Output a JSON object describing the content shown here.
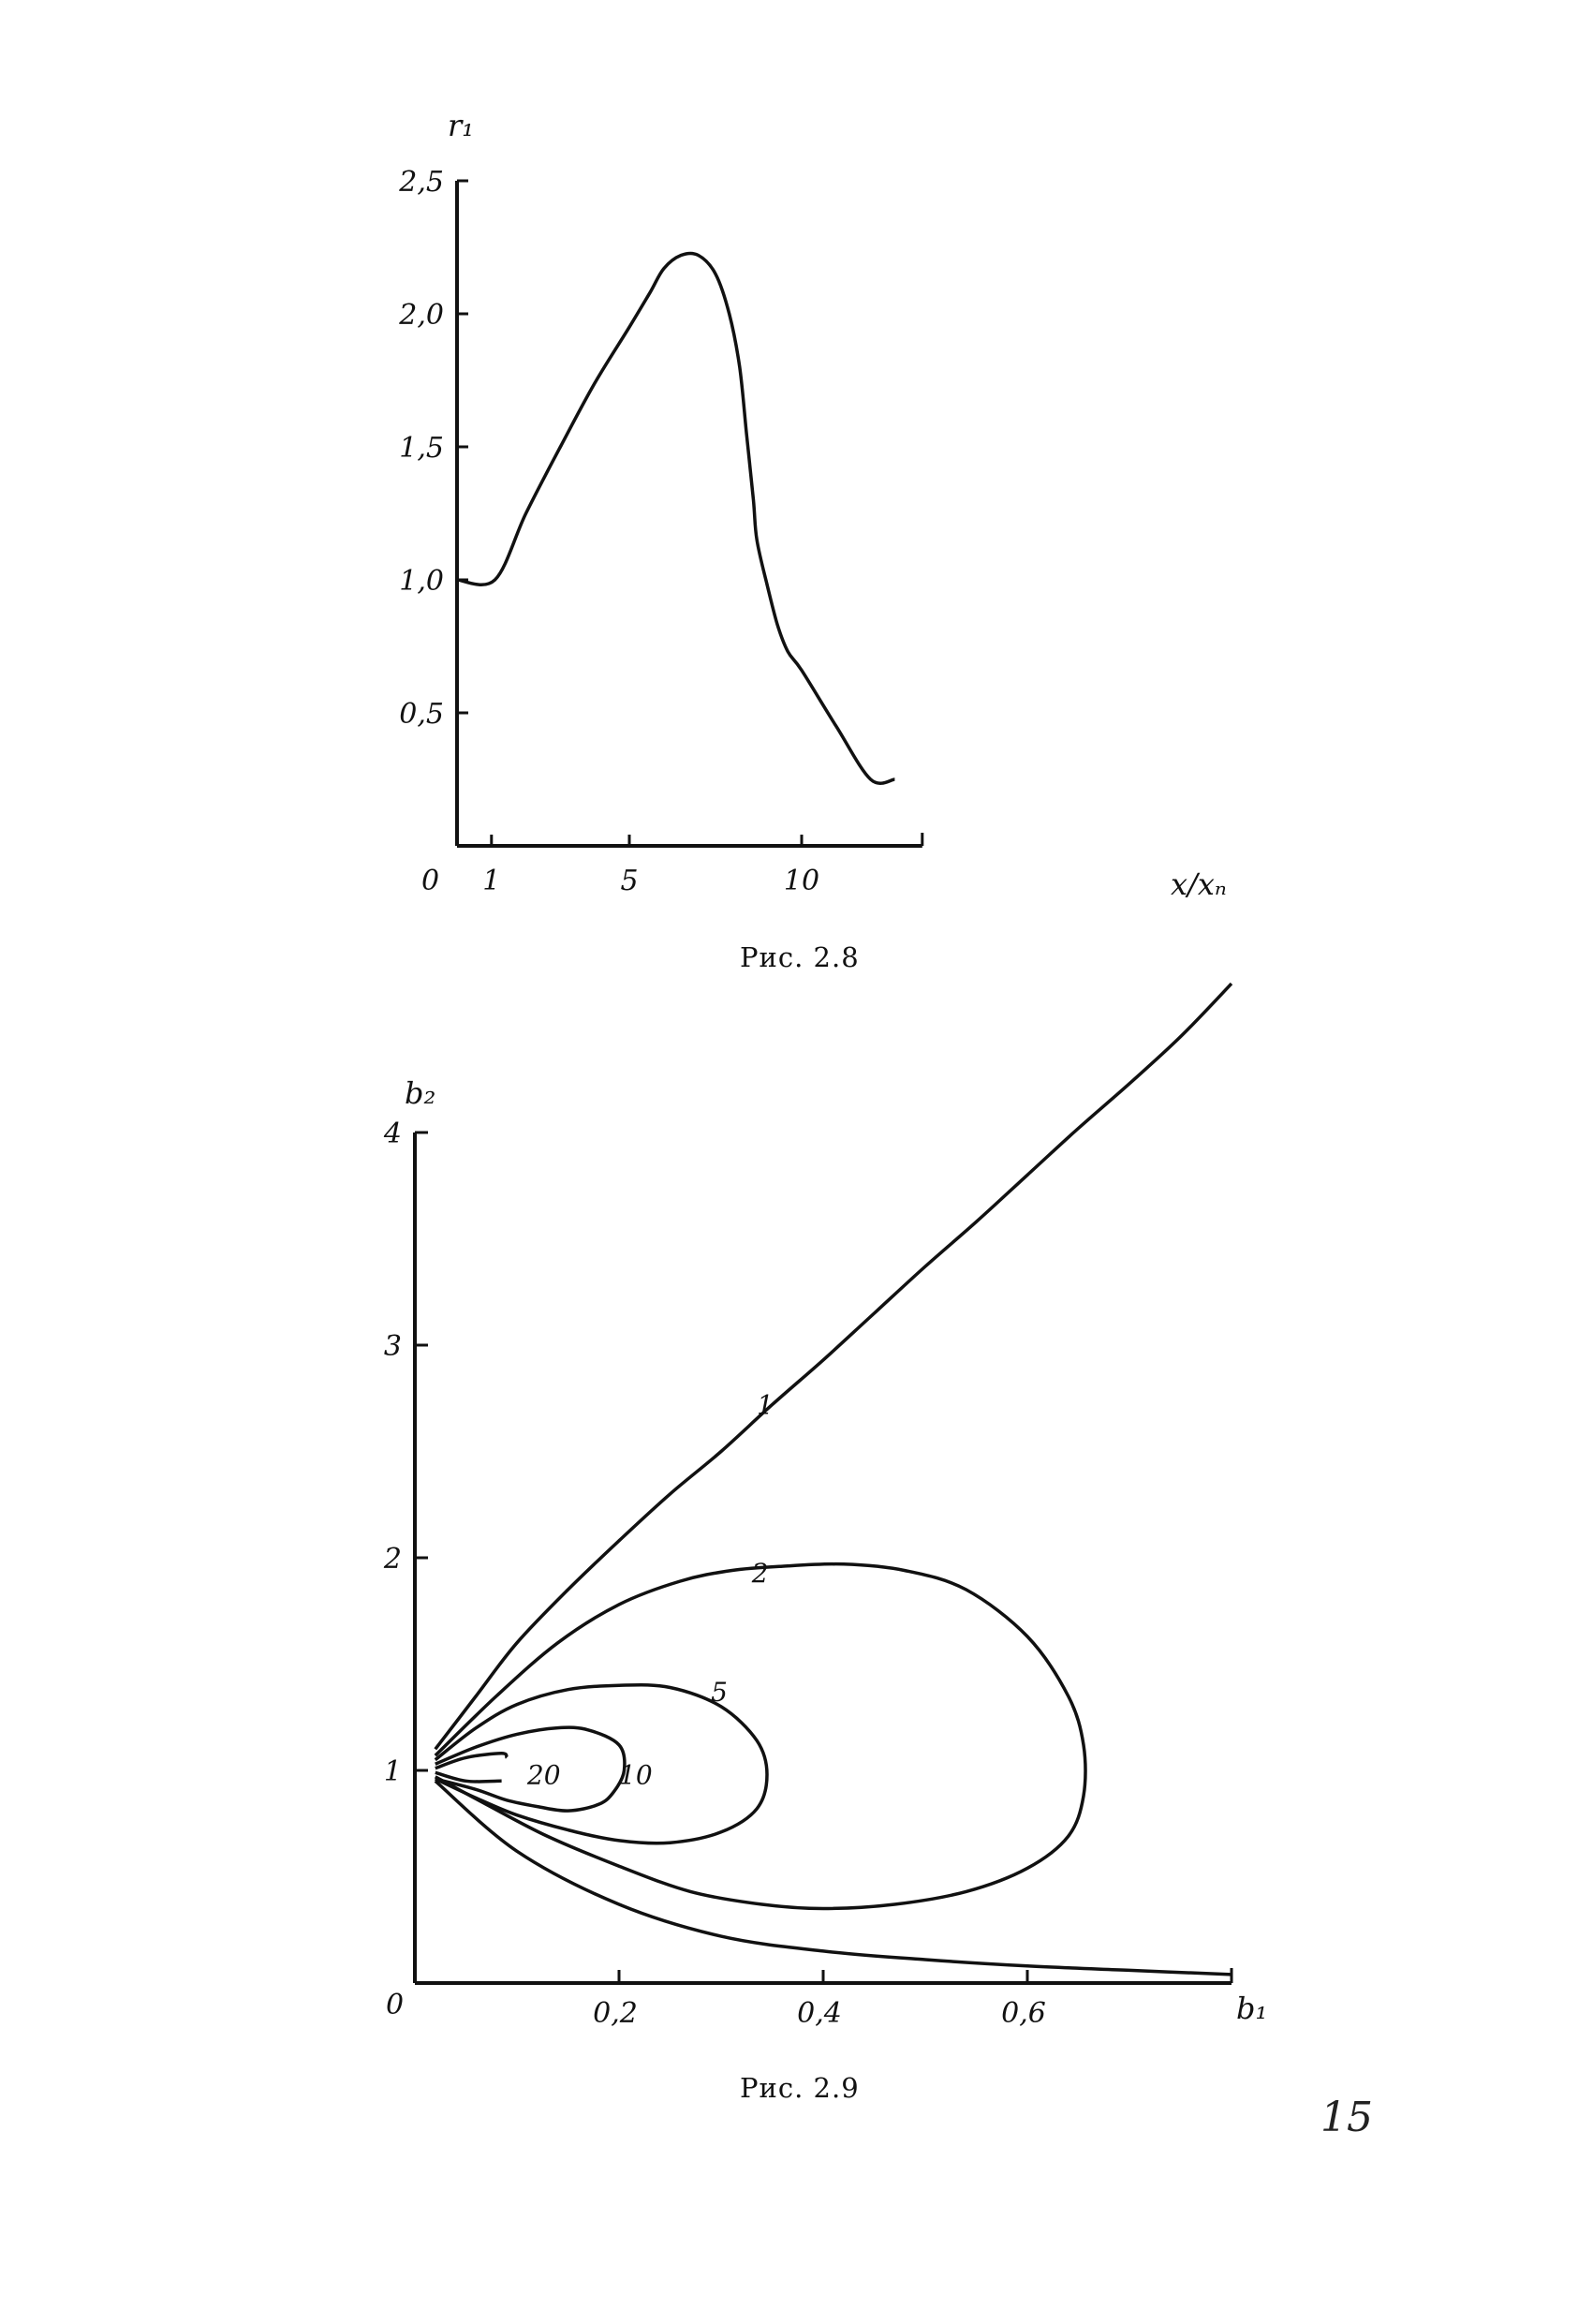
{
  "page_number": "15",
  "chart_data": [
    {
      "type": "line",
      "caption": "Рис. 2.8",
      "ylabel": "r₁",
      "xlabel": "x/xₙ",
      "origin_label": "0",
      "xlim": [
        0,
        13.5
      ],
      "ylim": [
        0,
        2.5
      ],
      "xticks": [
        {
          "value": 1,
          "label": "1"
        },
        {
          "value": 5,
          "label": "5"
        },
        {
          "value": 10,
          "label": "10"
        }
      ],
      "yticks": [
        {
          "value": 0.5,
          "label": "0,5"
        },
        {
          "value": 1.0,
          "label": "1,0"
        },
        {
          "value": 1.5,
          "label": "1,5"
        },
        {
          "value": 2.0,
          "label": "2,0"
        },
        {
          "value": 2.5,
          "label": "2,5"
        }
      ],
      "series": [
        {
          "x": [
            0,
            1.1,
            2.0,
            3.0,
            4.0,
            5.0,
            5.6,
            6.0,
            6.5,
            7.0,
            7.5,
            7.9,
            8.2,
            8.4,
            8.6,
            8.7,
            9.0,
            9.3,
            9.6,
            10.0,
            11.0,
            12.0,
            12.7
          ],
          "y": [
            1.0,
            1.0,
            1.25,
            1.5,
            1.74,
            1.95,
            2.08,
            2.17,
            2.22,
            2.22,
            2.15,
            2.0,
            1.8,
            1.55,
            1.3,
            1.15,
            0.98,
            0.83,
            0.73,
            0.66,
            0.45,
            0.25,
            0.25
          ]
        }
      ]
    },
    {
      "type": "line",
      "caption": "Рис. 2.9",
      "ylabel": "b₂",
      "xlabel": "b₁",
      "origin_label": "0",
      "xlim": [
        0,
        0.8
      ],
      "ylim": [
        0,
        4
      ],
      "xticks": [
        {
          "value": 0.2,
          "label": "0,2"
        },
        {
          "value": 0.4,
          "label": "0,4"
        },
        {
          "value": 0.6,
          "label": "0,6"
        }
      ],
      "yticks": [
        {
          "value": 1,
          "label": "1"
        },
        {
          "value": 2,
          "label": "2"
        },
        {
          "value": 3,
          "label": "3"
        },
        {
          "value": 4,
          "label": "4"
        }
      ],
      "series": [
        {
          "label": "1",
          "x": [
            0.02,
            0.06,
            0.1,
            0.15,
            0.2,
            0.25,
            0.3,
            0.35,
            0.4,
            0.45,
            0.5,
            0.55,
            0.6,
            0.65,
            0.7,
            0.75,
            0.8
          ],
          "y": [
            1.1,
            1.35,
            1.6,
            1.85,
            2.08,
            2.3,
            2.5,
            2.72,
            2.93,
            3.15,
            3.37,
            3.58,
            3.8,
            4.02,
            4.23,
            4.45,
            4.7
          ],
          "label_at": [
            0.335,
            2.72
          ]
        },
        {
          "label": "",
          "x": [
            0.02,
            0.1,
            0.2,
            0.3,
            0.4,
            0.5,
            0.6,
            0.7,
            0.8
          ],
          "y": [
            0.95,
            0.62,
            0.37,
            0.22,
            0.15,
            0.11,
            0.08,
            0.06,
            0.04
          ]
        },
        {
          "label": "2",
          "x": [
            0.02,
            0.08,
            0.14,
            0.2,
            0.26,
            0.31,
            0.36,
            0.42,
            0.48,
            0.54,
            0.6,
            0.64,
            0.655,
            0.655,
            0.64,
            0.6,
            0.54,
            0.47,
            0.4,
            0.34,
            0.27,
            0.2,
            0.13,
            0.07,
            0.02
          ],
          "y": [
            1.07,
            1.35,
            1.6,
            1.78,
            1.89,
            1.94,
            1.96,
            1.97,
            1.94,
            1.85,
            1.63,
            1.35,
            1.12,
            0.88,
            0.69,
            0.54,
            0.43,
            0.37,
            0.35,
            0.37,
            0.43,
            0.55,
            0.69,
            0.84,
            0.97
          ],
          "label_at": [
            0.33,
            1.93
          ]
        },
        {
          "label": "5",
          "x": [
            0.02,
            0.06,
            0.1,
            0.15,
            0.2,
            0.25,
            0.3,
            0.335,
            0.345,
            0.335,
            0.3,
            0.25,
            0.2,
            0.15,
            0.1,
            0.06,
            0.02
          ],
          "y": [
            1.05,
            1.2,
            1.31,
            1.38,
            1.4,
            1.39,
            1.3,
            1.14,
            0.98,
            0.82,
            0.71,
            0.66,
            0.67,
            0.72,
            0.79,
            0.87,
            0.96
          ],
          "label_at": [
            0.29,
            1.37
          ]
        },
        {
          "label": "10",
          "x": [
            0.02,
            0.06,
            0.1,
            0.14,
            0.17,
            0.2,
            0.205,
            0.195,
            0.18,
            0.15,
            0.12,
            0.09,
            0.06,
            0.02
          ],
          "y": [
            1.03,
            1.11,
            1.17,
            1.2,
            1.19,
            1.12,
            1.0,
            0.9,
            0.84,
            0.81,
            0.83,
            0.86,
            0.91,
            0.96
          ],
          "label_at": [
            0.2,
            0.98
          ]
        },
        {
          "label": "20",
          "x": [
            0.02,
            0.05,
            0.085,
            0.09
          ],
          "y": [
            1.01,
            1.06,
            1.08,
            1.06
          ],
          "x2": [
            0.02,
            0.05,
            0.085
          ],
          "y2": [
            0.99,
            0.95,
            0.95
          ],
          "label_at": [
            0.11,
            0.98
          ]
        }
      ]
    }
  ]
}
